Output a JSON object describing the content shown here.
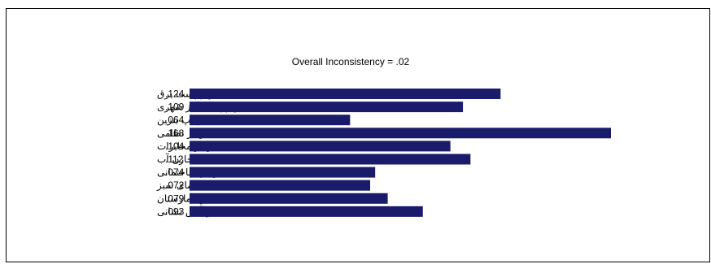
{
  "chart_data": {
    "type": "bar",
    "orientation": "horizontal",
    "title": "Overall Inconsistency = .02",
    "categories": [
      "حریم پست برق",
      "حریم پست گاز شهری",
      "پمپ بنزین",
      "مراکز نظامی",
      "مراکز مخابرات",
      "مخازن آب",
      "تراکم ساختمانی",
      "فضای سبز",
      "فاصله از بیمارستان",
      "فاصله از آتش نشانی"
    ],
    "values": [
      0.124,
      0.109,
      0.064,
      0.168,
      0.104,
      0.112,
      0.074,
      0.072,
      0.079,
      0.093
    ],
    "value_labels": [
      ".124",
      ".109",
      ".064",
      ".168",
      ".104",
      ".112",
      ".074",
      ".072",
      ".079",
      ".093"
    ],
    "xlim": [
      0,
      0.168
    ],
    "grid": false,
    "legend": "none",
    "bar_color": "#1b1b6b"
  }
}
